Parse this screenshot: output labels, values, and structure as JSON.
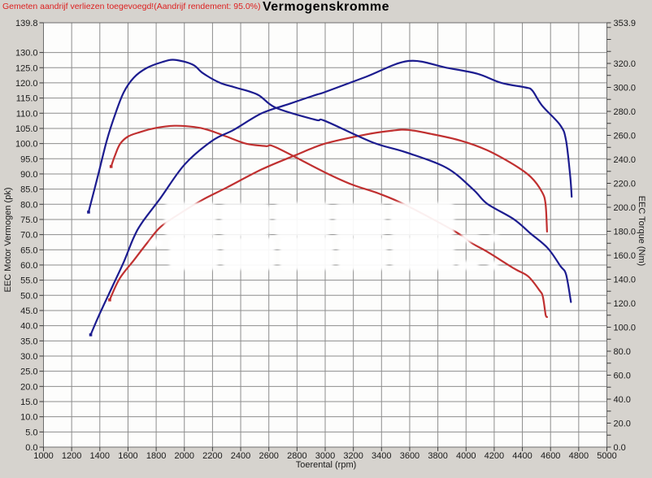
{
  "header": {
    "warning_text": "Gemeten aandrijf verliezen toegevoegd!(Aandrijf rendement: 95.0%)",
    "title": "Vermogenskromme"
  },
  "chart_data": {
    "type": "line",
    "title": "Vermogenskromme",
    "xlabel": "Toerental (rpm)",
    "ylabel_left": "EEC Motor Vermogen (pk)",
    "ylabel_right": "EEC Torque (Nm)",
    "x_range": [
      1000,
      5000
    ],
    "x_tick_step": 200,
    "y_left_range": [
      0,
      139.8
    ],
    "y_left_tick_step": 5,
    "y_left_top_label": 139.8,
    "y_right_range": [
      0,
      353.9
    ],
    "y_right_label_step": 20,
    "y_right_minor_tick_step": 10,
    "y_right_top_label": 353.9,
    "grid": true,
    "legend_position": "none",
    "series": [
      {
        "name": "torque-red",
        "unit": "Nm",
        "axis": "right",
        "color": "#c03030",
        "points": [
          [
            1480,
            234
          ],
          [
            1510,
            244
          ],
          [
            1545,
            253
          ],
          [
            1600,
            259
          ],
          [
            1680,
            262.5
          ],
          [
            1790,
            266
          ],
          [
            1930,
            268
          ],
          [
            2070,
            267
          ],
          [
            2170,
            264.5
          ],
          [
            2300,
            259
          ],
          [
            2440,
            253
          ],
          [
            2580,
            251
          ],
          [
            2650,
            250
          ],
          [
            3000,
            229
          ],
          [
            3190,
            219
          ],
          [
            3380,
            211.5
          ],
          [
            3570,
            202
          ],
          [
            3920,
            180
          ],
          [
            4050,
            169.5
          ],
          [
            4150,
            163
          ],
          [
            4340,
            149
          ],
          [
            4440,
            142.5
          ],
          [
            4520,
            131
          ],
          [
            4545,
            125.5
          ],
          [
            4565,
            110.5
          ],
          [
            4575,
            108.5
          ]
        ]
      },
      {
        "name": "power-red",
        "unit": "pk",
        "axis": "left",
        "color": "#c03030",
        "points": [
          [
            1470,
            48.5
          ],
          [
            1540,
            55.5
          ],
          [
            1640,
            61.5
          ],
          [
            1740,
            67.5
          ],
          [
            1830,
            72.5
          ],
          [
            1970,
            77
          ],
          [
            2130,
            81.5
          ],
          [
            2300,
            85.5
          ],
          [
            2550,
            91.5
          ],
          [
            2780,
            96
          ],
          [
            3000,
            100
          ],
          [
            3290,
            103
          ],
          [
            3480,
            104.3
          ],
          [
            3590,
            104.5
          ],
          [
            3750,
            103.2
          ],
          [
            3960,
            101
          ],
          [
            4150,
            97.8
          ],
          [
            4340,
            93
          ],
          [
            4460,
            89
          ],
          [
            4540,
            84
          ],
          [
            4565,
            80
          ],
          [
            4575,
            71
          ]
        ]
      },
      {
        "name": "torque-blue",
        "unit": "Nm",
        "axis": "right",
        "color": "#1c1c8f",
        "points": [
          [
            1320,
            196
          ],
          [
            1390,
            228
          ],
          [
            1450,
            256
          ],
          [
            1510,
            278
          ],
          [
            1570,
            296
          ],
          [
            1640,
            308
          ],
          [
            1730,
            316
          ],
          [
            1840,
            321
          ],
          [
            1930,
            323
          ],
          [
            2060,
            319
          ],
          [
            2130,
            312
          ],
          [
            2250,
            304
          ],
          [
            2360,
            300
          ],
          [
            2520,
            294
          ],
          [
            2650,
            283
          ],
          [
            2930,
            273
          ],
          [
            3000,
            272
          ],
          [
            3340,
            254
          ],
          [
            3570,
            246
          ],
          [
            3860,
            233
          ],
          [
            4050,
            215
          ],
          [
            4150,
            203
          ],
          [
            4340,
            190
          ],
          [
            4460,
            178
          ],
          [
            4580,
            166
          ],
          [
            4670,
            151
          ],
          [
            4710,
            144
          ],
          [
            4745,
            121
          ]
        ]
      },
      {
        "name": "power-blue",
        "unit": "pk",
        "axis": "left",
        "color": "#1c1c8f",
        "points": [
          [
            1335,
            37
          ],
          [
            1390,
            43
          ],
          [
            1490,
            53
          ],
          [
            1570,
            61
          ],
          [
            1640,
            69
          ],
          [
            1700,
            74
          ],
          [
            1830,
            82
          ],
          [
            2000,
            93
          ],
          [
            2200,
            101
          ],
          [
            2350,
            104.5
          ],
          [
            2550,
            110
          ],
          [
            2740,
            113
          ],
          [
            2930,
            116
          ],
          [
            3000,
            117
          ],
          [
            3290,
            122
          ],
          [
            3590,
            127.2
          ],
          [
            3860,
            125
          ],
          [
            4080,
            123
          ],
          [
            4250,
            120
          ],
          [
            4420,
            118.5
          ],
          [
            4470,
            117.5
          ],
          [
            4540,
            112.5
          ],
          [
            4670,
            106
          ],
          [
            4710,
            101
          ],
          [
            4740,
            89
          ],
          [
            4750,
            82.5
          ]
        ]
      }
    ]
  }
}
